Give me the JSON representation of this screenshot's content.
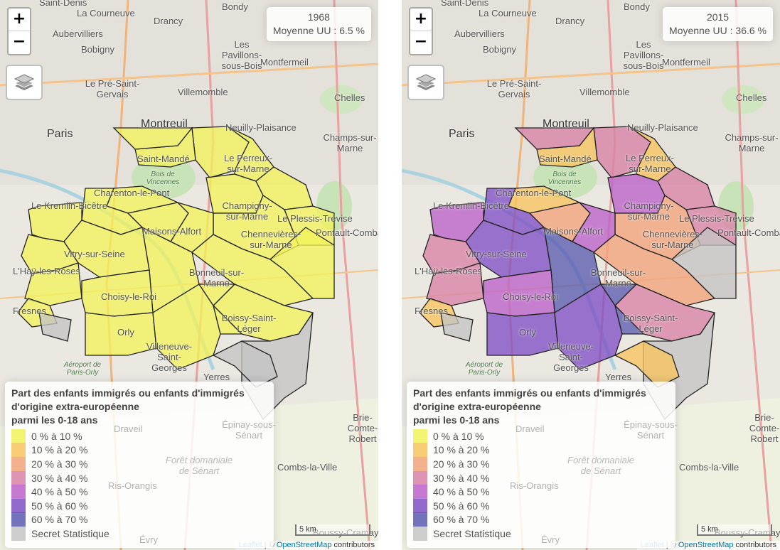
{
  "colors": {
    "c0": "#f2f25a",
    "c1": "#f7c45e",
    "c2": "#f2a37a",
    "c3": "#d883a6",
    "c4": "#bb62c9",
    "c5": "#7f4fc4",
    "c6": "#5b5bb0",
    "secret": "#c4c4c4"
  },
  "map_labels": [
    "Saint-Denis",
    "La Courneuve",
    "Bondy",
    "Drancy",
    "Aubervilliers",
    "Bobigny",
    "Les Pavillons-sous-Bois",
    "Montfermeil",
    "Le Pré-Saint-Gervais",
    "Villemomble",
    "Chelles",
    "Montreuil",
    "Paris",
    "Neuilly-Plaisance",
    "Champs-sur-Marne",
    "Saint-Mandé",
    "Bois de Vincennes",
    "Le Perreux-sur-Marne",
    "Charenton-le-Pont",
    "Le Kremlin-Bicêtre",
    "Champigny-sur-Marne",
    "Le Plessis-Trévise",
    "Pontault-Combault",
    "Maisons-Alfort",
    "Chennevières-sur-Marne",
    "Vitry-sur-Seine",
    "L'Haÿ-les-Roses",
    "Bonneuil-sur-Marne",
    "Choisy-le-Roi",
    "Fresnes",
    "Boissy-Saint-Léger",
    "Orly",
    "Villeneuve-Saint-Georges",
    "Yerres",
    "Aéroport de Paris-Orly",
    "Draveil",
    "Épinay-sous-Sénart",
    "Brie-Comte-Robert",
    "Forêt domaniale de Sénart",
    "Combs-la-Ville",
    "Ris-Orangis",
    "Évry",
    "Boussy-Cramayel"
  ],
  "panels": [
    {
      "year": "1968",
      "mean": "Moyenne UU : 6.5 %",
      "classes": [
        "c0",
        "c0",
        "c0",
        "c0",
        "c0",
        "c0",
        "c0",
        "c0",
        "c0",
        "c0",
        "c0",
        "c0",
        "c0",
        "c0",
        "c0",
        "c0",
        "c0",
        "c0",
        "c0",
        "c0",
        "c0",
        "c0",
        "c0",
        "c0",
        "secret",
        "secret",
        "secret",
        "c0"
      ]
    },
    {
      "year": "2015",
      "mean": "Moyenne UU : 36.6 %",
      "classes": [
        "c3",
        "c1",
        "c3",
        "c1",
        "c4",
        "c3",
        "c2",
        "c1",
        "c5",
        "c4",
        "c3",
        "c5",
        "c2",
        "c4",
        "c6",
        "c2",
        "c3",
        "c3",
        "c4",
        "c5",
        "c5",
        "c6",
        "c1",
        "secret",
        "secret",
        "secret",
        "c1",
        "c3"
      ]
    }
  ],
  "zoom": {
    "in": "+",
    "out": "−"
  },
  "legend": {
    "title": [
      "Part des enfants immigrés ou enfants d'immigrés",
      "d'origine extra-européenne",
      "parmi les 0-18 ans"
    ],
    "items": [
      {
        "label": "0 % à 10 %",
        "color": "c0"
      },
      {
        "label": "10 % à 20 %",
        "color": "c1"
      },
      {
        "label": "20 % à 30 %",
        "color": "c2"
      },
      {
        "label": "30 % à 40 %",
        "color": "c3"
      },
      {
        "label": "40 % à 50 %",
        "color": "c4"
      },
      {
        "label": "50 % à 60 %",
        "color": "c5"
      },
      {
        "label": "60 % à 70 %",
        "color": "c6"
      },
      {
        "label": "Secret Statistique",
        "color": "secret"
      }
    ]
  },
  "scale": "5 km",
  "attribution": {
    "leaflet": "Leaflet",
    "sep": " | © ",
    "osm": "OpenStreetMap",
    "suffix": " contributors"
  }
}
